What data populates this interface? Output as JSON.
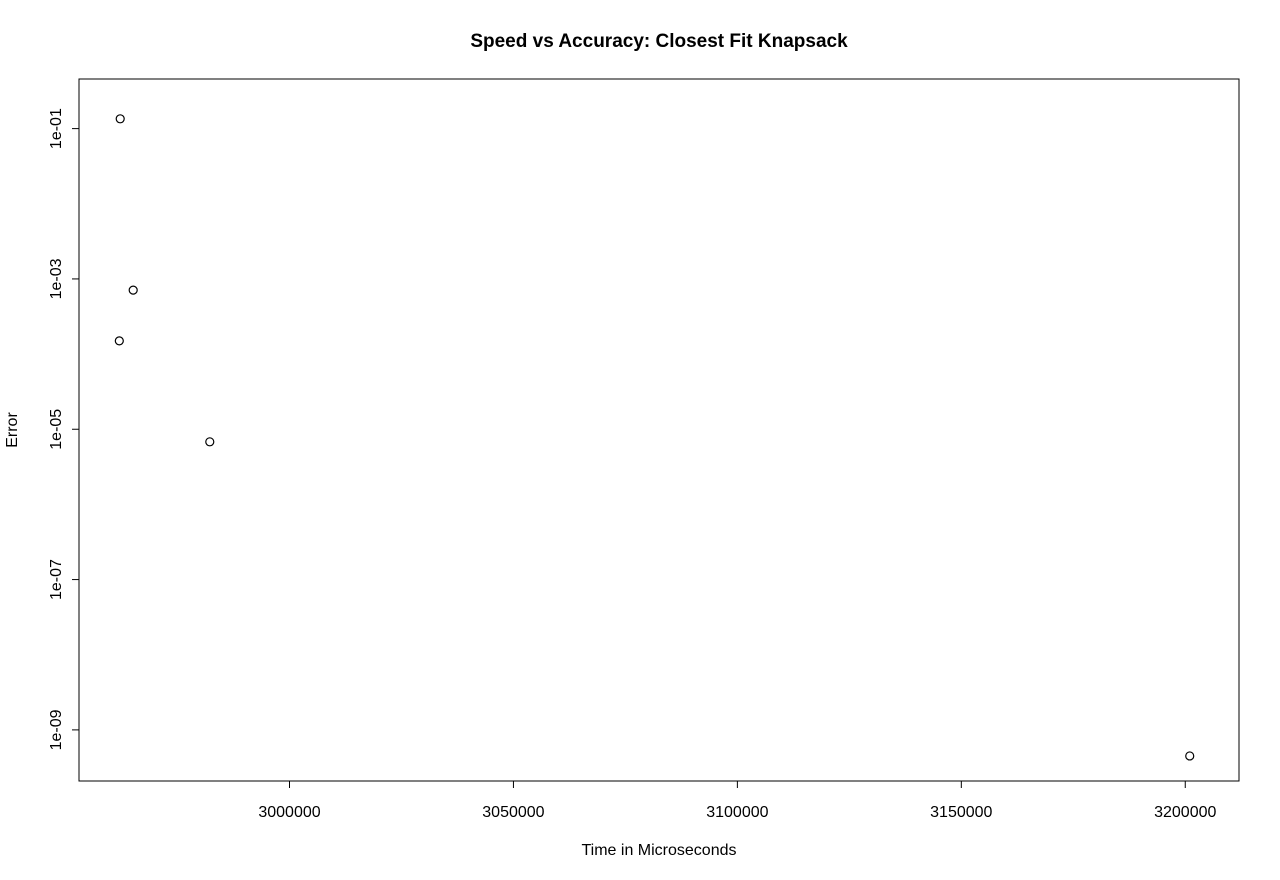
{
  "chart_data": {
    "type": "scatter",
    "title": "Speed vs Accuracy: Closest Fit Knapsack",
    "xlabel": "Time in Microseconds",
    "ylabel": "Error",
    "x_scale": "linear",
    "y_scale": "log",
    "xlim": [
      2953000,
      3212000
    ],
    "ylim_log10": [
      -9.68,
      -0.34
    ],
    "x_ticks": [
      3000000,
      3050000,
      3100000,
      3150000,
      3200000
    ],
    "x_tick_labels": [
      "3000000",
      "3050000",
      "3100000",
      "3150000",
      "3200000"
    ],
    "y_ticks": [
      1e-09,
      1e-07,
      1e-05,
      0.001,
      0.1
    ],
    "y_tick_labels": [
      "1e-09",
      "1e-07",
      "1e-05",
      "1e-03",
      "1e-01"
    ],
    "grid": false,
    "marker": "open-circle",
    "points": [
      {
        "x": 2962200,
        "y": 0.135
      },
      {
        "x": 2962000,
        "y": 0.00015
      },
      {
        "x": 2965100,
        "y": 0.00071
      },
      {
        "x": 2982200,
        "y": 6.8e-06
      },
      {
        "x": 3201000,
        "y": 4.5e-10
      }
    ]
  }
}
